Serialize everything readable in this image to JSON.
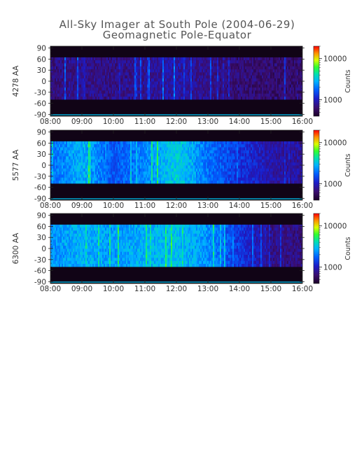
{
  "title": "All-Sky Imager at South Pole (2004-06-29)",
  "subtitle": "Geomagnetic Pole-Equator",
  "chart_data": [
    {
      "type": "heatmap",
      "ylabel": "4278 AA",
      "xlabel": "",
      "x_range": [
        "08:00",
        "16:00"
      ],
      "x_ticks": [
        "08:00",
        "09:00",
        "10:00",
        "11:00",
        "12:00",
        "13:00",
        "14:00",
        "15:00",
        "16:00"
      ],
      "ylim": [
        -95,
        95
      ],
      "y_ticks": [
        90,
        60,
        30,
        0,
        -30,
        -60,
        -90
      ],
      "valid_lat_range": [
        -50,
        65
      ],
      "colorbar": {
        "label": "Counts",
        "scale": "log",
        "ticks": [
          10000,
          1000
        ],
        "range": [
          400,
          20000
        ]
      },
      "intensity_profile": {
        "times": [
          "08:00",
          "09:00",
          "10:00",
          "11:00",
          "12:00",
          "13:00",
          "14:00",
          "15:00",
          "16:00"
        ],
        "relative_level": [
          0.14,
          0.16,
          0.15,
          0.17,
          0.2,
          0.16,
          0.13,
          0.12,
          0.12
        ]
      }
    },
    {
      "type": "heatmap",
      "ylabel": "5577 AA",
      "xlabel": "",
      "x_range": [
        "08:00",
        "16:00"
      ],
      "x_ticks": [
        "08:00",
        "09:00",
        "10:00",
        "11:00",
        "12:00",
        "13:00",
        "14:00",
        "15:00",
        "16:00"
      ],
      "ylim": [
        -95,
        95
      ],
      "y_ticks": [
        90,
        60,
        30,
        0,
        -30,
        -60,
        -90
      ],
      "valid_lat_range": [
        -50,
        65
      ],
      "colorbar": {
        "label": "Counts",
        "scale": "log",
        "ticks": [
          10000,
          1000
        ],
        "range": [
          400,
          20000
        ]
      },
      "intensity_profile": {
        "times": [
          "08:00",
          "09:00",
          "10:00",
          "11:00",
          "12:00",
          "13:00",
          "14:00",
          "15:00",
          "16:00"
        ],
        "relative_level": [
          0.4,
          0.5,
          0.36,
          0.44,
          0.55,
          0.4,
          0.3,
          0.2,
          0.18
        ]
      }
    },
    {
      "type": "heatmap",
      "ylabel": "6300 AA",
      "xlabel": "",
      "x_range": [
        "08:00",
        "16:00"
      ],
      "x_ticks": [
        "08:00",
        "09:00",
        "10:00",
        "11:00",
        "12:00",
        "13:00",
        "14:00",
        "15:00",
        "16:00"
      ],
      "ylim": [
        -95,
        95
      ],
      "y_ticks": [
        90,
        60,
        30,
        0,
        -30,
        -60,
        -90
      ],
      "valid_lat_range": [
        -50,
        65
      ],
      "colorbar": {
        "label": "Counts",
        "scale": "log",
        "ticks": [
          10000,
          1000
        ],
        "range": [
          400,
          20000
        ]
      },
      "intensity_profile": {
        "times": [
          "08:00",
          "09:00",
          "10:00",
          "11:00",
          "12:00",
          "13:00",
          "14:00",
          "15:00",
          "16:00"
        ],
        "relative_level": [
          0.45,
          0.5,
          0.46,
          0.5,
          0.52,
          0.45,
          0.3,
          0.16,
          0.14
        ]
      }
    }
  ]
}
